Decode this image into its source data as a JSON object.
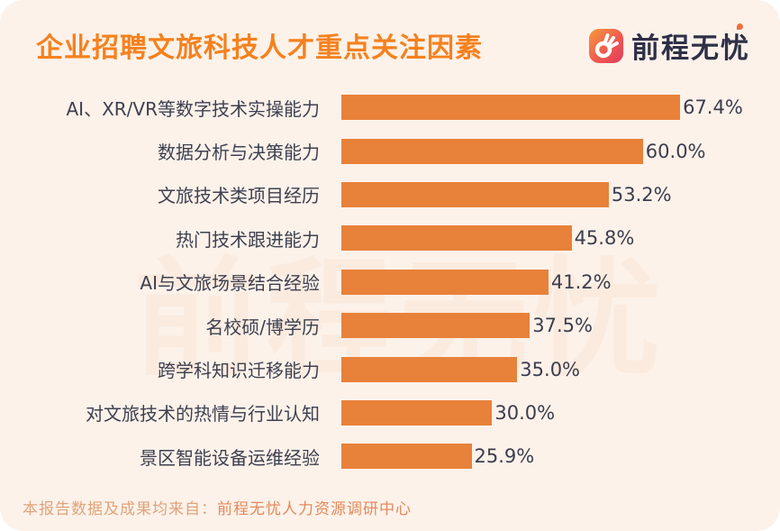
{
  "header": {
    "title": "企业招聘文旅科技人才重点关注因素",
    "logo_text": "前程无忧"
  },
  "watermark": {
    "text": "前程无忧"
  },
  "chart_data": {
    "type": "bar",
    "orientation": "horizontal",
    "title": "企业招聘文旅科技人才重点关注因素",
    "categories": [
      "AI、XR/VR等数字技术实操能力",
      "数据分析与决策能力",
      "文旅技术类项目经历",
      "热门技术跟进能力",
      "AI与文旅场景结合经验",
      "名校硕/博学历",
      "跨学科知识迁移能力",
      "对文旅技术的热情与行业认知",
      "景区智能设备运维经验"
    ],
    "values": [
      67.4,
      60.0,
      53.2,
      45.8,
      41.2,
      37.5,
      35.0,
      30.0,
      25.9
    ],
    "value_labels": [
      "67.4%",
      "60.0%",
      "53.2%",
      "45.8%",
      "41.2%",
      "37.5%",
      "35.0%",
      "30.0%",
      "25.9%"
    ],
    "xlabel": "",
    "ylabel": "",
    "xlim": [
      0,
      75
    ],
    "grid": false,
    "legend": false,
    "bar_color": "#E8813A"
  },
  "footer": {
    "prefix": "本报告数据及成果均来自：",
    "source": "前程无忧人力资源调研中心"
  },
  "colors": {
    "accent_title": "#F5811E",
    "bar": "#E8813A",
    "text_dark": "#3C3E4E",
    "card_bg": "#FCF2EA",
    "footer_prefix": "#DFA37A",
    "footer_source": "#E5895B",
    "logo_navy": "#2F3047"
  }
}
